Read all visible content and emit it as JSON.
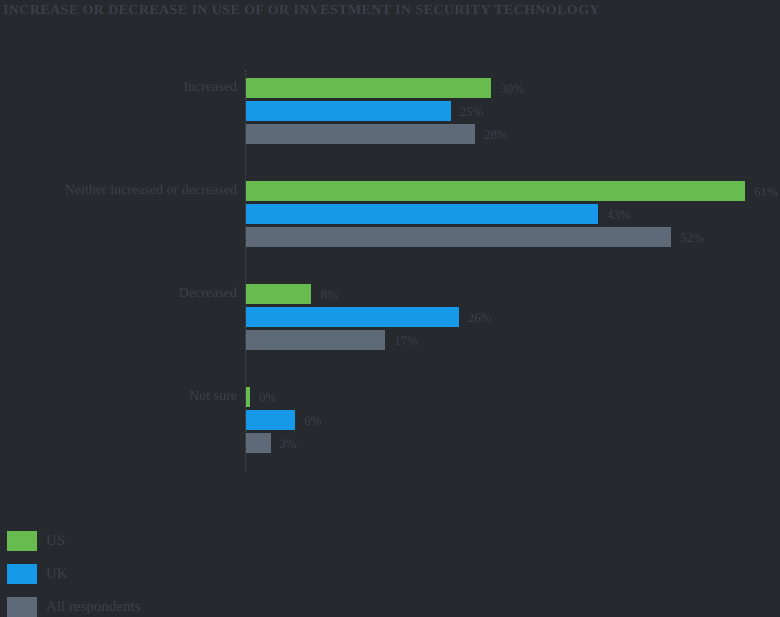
{
  "title": "INCREASE OR DECREASE IN USE OF OR INVESTMENT IN SECURITY TECHNOLOGY",
  "colors": {
    "background": "#26292E",
    "us_green": "#68BC4F",
    "uk_blue": "#1699E8",
    "all_gray": "#5E6A77",
    "text": "#3C414B",
    "axis": "#4A5059"
  },
  "legend": {
    "position": "bottom-left",
    "items": [
      {
        "label": "US",
        "color": "#68BC4F"
      },
      {
        "label": "UK",
        "color": "#1699E8"
      },
      {
        "label": "All respondents",
        "color": "#5E6A77"
      }
    ]
  },
  "chart_data": {
    "type": "bar",
    "orientation": "horizontal",
    "title": "INCREASE OR DECREASE IN USE OF OR INVESTMENT IN SECURITY TECHNOLOGY",
    "categories": [
      "Increased",
      "Neither increased or decreased",
      "Decreased",
      "Not sure"
    ],
    "series": [
      {
        "name": "US",
        "color": "#68BC4F",
        "values": [
          30,
          61,
          8,
          0
        ],
        "value_labels": [
          "30%",
          "61%",
          "8%",
          "0%"
        ]
      },
      {
        "name": "UK",
        "color": "#1699E8",
        "values": [
          25,
          43,
          26,
          6
        ],
        "value_labels": [
          "25%",
          "43%",
          "26%",
          "6%"
        ]
      },
      {
        "name": "All respondents",
        "color": "#5E6A77",
        "values": [
          28,
          52,
          17,
          3
        ],
        "value_labels": [
          "28%",
          "52%",
          "17%",
          "3%"
        ]
      }
    ],
    "xlim": [
      0,
      65
    ],
    "value_suffix": "%",
    "grid": false,
    "legend_position": "bottom-left"
  }
}
